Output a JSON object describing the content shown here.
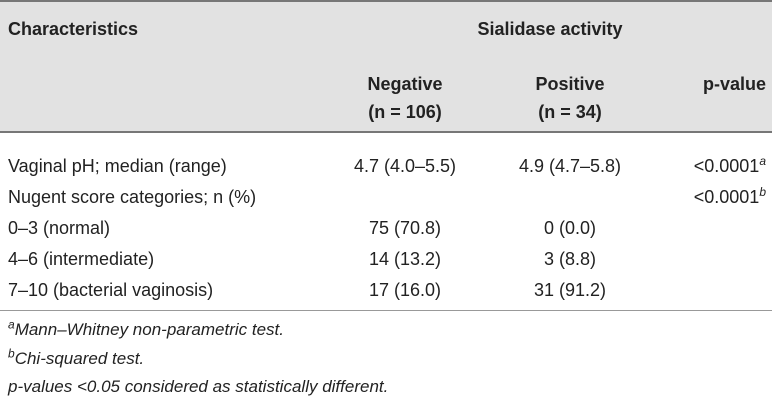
{
  "header": {
    "characteristics": "Characteristics",
    "group": "Sialidase activity",
    "negative_label": "Negative",
    "negative_n": "(n = 106)",
    "positive_label": "Positive",
    "positive_n": "(n = 34)",
    "pvalue_label": "p-value"
  },
  "rows": [
    {
      "label": "Vaginal pH; median (range)",
      "negative": "4.7 (4.0–5.5)",
      "positive": "4.9 (4.7–5.8)",
      "pvalue": "<0.0001",
      "sup": "a"
    },
    {
      "label": "Nugent score categories; n (%)",
      "negative": "",
      "positive": "",
      "pvalue": "<0.0001",
      "sup": "b"
    },
    {
      "label": "0–3 (normal)",
      "negative": "75 (70.8)",
      "positive": "0 (0.0)",
      "pvalue": "",
      "sup": ""
    },
    {
      "label": "4–6 (intermediate)",
      "negative": "14 (13.2)",
      "positive": "3 (8.8)",
      "pvalue": "",
      "sup": ""
    },
    {
      "label": "7–10 (bacterial vaginosis)",
      "negative": "17 (16.0)",
      "positive": "31 (91.2)",
      "pvalue": "",
      "sup": ""
    }
  ],
  "footnotes": [
    {
      "sup": "a",
      "text": "Mann–Whitney non-parametric test."
    },
    {
      "sup": "b",
      "text": "Chi-squared test."
    },
    {
      "sup": "",
      "text": "p-values <0.05 considered as statistically different."
    }
  ]
}
